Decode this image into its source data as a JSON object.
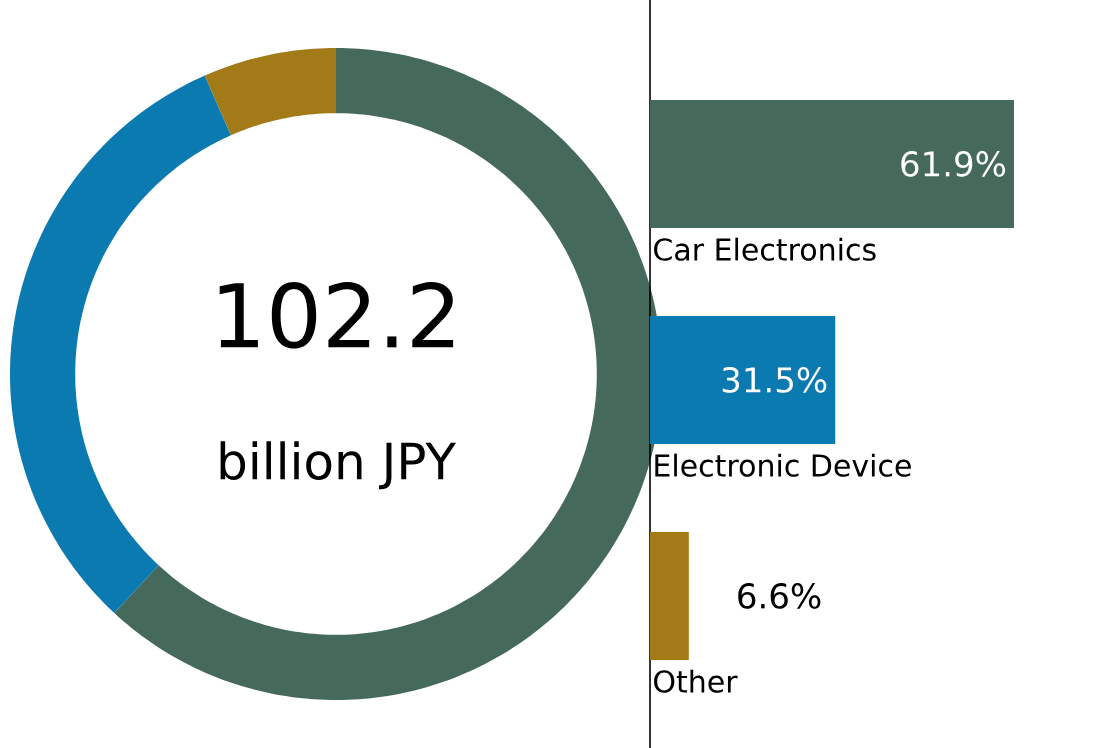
{
  "chart_data": [
    {
      "type": "donut",
      "categories": [
        null,
        null,
        null
      ],
      "values": [
        61.9,
        31.5,
        6.6
      ],
      "colors": [
        "#45695a",
        "#0b7ab0",
        "#a27b18"
      ],
      "annotations": [
        "102.2",
        "billion JPY"
      ]
    },
    {
      "type": "bar",
      "orientation": "horizontal",
      "categories": [
        "Car Electronics",
        "Electronic Device",
        "Other"
      ],
      "values": [
        61.9,
        31.5,
        6.6
      ],
      "colors": [
        "#45695a",
        "#0b7ab0",
        "#a27b18"
      ],
      "value_labels": [
        "61.9%",
        "31.5%",
        "6.6%"
      ]
    }
  ]
}
